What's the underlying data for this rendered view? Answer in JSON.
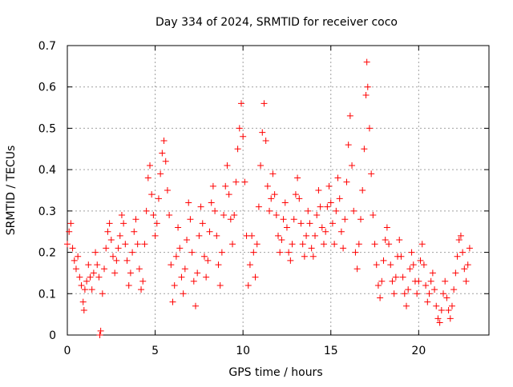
{
  "chart_data": {
    "type": "scatter",
    "title": "Day 334 of 2024, SRMTID for receiver coco",
    "xlabel": "GPS time / hours",
    "ylabel": "SRMTID / TECUs",
    "xlim": [
      0,
      24
    ],
    "ylim": [
      0,
      0.7
    ],
    "xticks": [
      0,
      5,
      10,
      15,
      20
    ],
    "yticks": [
      0,
      0.1,
      0.2,
      0.3,
      0.4,
      0.5,
      0.6,
      0.7
    ],
    "xtick_labels": [
      "0",
      "5",
      "10",
      "15",
      "20"
    ],
    "ytick_labels": [
      "0",
      "0.1",
      "0.2",
      "0.3",
      "0.4",
      "0.5",
      "0.6",
      "0.7"
    ],
    "grid": true,
    "marker": "+",
    "colors": {
      "marker": "#ff0000",
      "grid": "#a0a0a0",
      "axis": "#000000"
    },
    "series": [
      {
        "name": "SRMTID",
        "points": [
          [
            0.0,
            0.22
          ],
          [
            0.1,
            0.25
          ],
          [
            0.2,
            0.27
          ],
          [
            0.3,
            0.21
          ],
          [
            0.4,
            0.18
          ],
          [
            0.5,
            0.16
          ],
          [
            0.6,
            0.19
          ],
          [
            0.7,
            0.14
          ],
          [
            0.8,
            0.12
          ],
          [
            0.9,
            0.08
          ],
          [
            0.95,
            0.06
          ],
          [
            1.0,
            0.11
          ],
          [
            1.1,
            0.13
          ],
          [
            1.2,
            0.17
          ],
          [
            1.3,
            0.14
          ],
          [
            1.4,
            0.11
          ],
          [
            1.5,
            0.15
          ],
          [
            1.6,
            0.2
          ],
          [
            1.7,
            0.17
          ],
          [
            1.8,
            0.14
          ],
          [
            1.85,
            0.0
          ],
          [
            1.9,
            0.01
          ],
          [
            2.0,
            0.1
          ],
          [
            2.1,
            0.16
          ],
          [
            2.2,
            0.21
          ],
          [
            2.3,
            0.25
          ],
          [
            2.4,
            0.27
          ],
          [
            2.5,
            0.23
          ],
          [
            2.6,
            0.19
          ],
          [
            2.7,
            0.15
          ],
          [
            2.8,
            0.18
          ],
          [
            2.9,
            0.21
          ],
          [
            3.0,
            0.24
          ],
          [
            3.1,
            0.29
          ],
          [
            3.2,
            0.27
          ],
          [
            3.3,
            0.22
          ],
          [
            3.4,
            0.18
          ],
          [
            3.5,
            0.12
          ],
          [
            3.6,
            0.15
          ],
          [
            3.7,
            0.2
          ],
          [
            3.8,
            0.25
          ],
          [
            3.9,
            0.28
          ],
          [
            4.0,
            0.22
          ],
          [
            4.1,
            0.16
          ],
          [
            4.2,
            0.11
          ],
          [
            4.3,
            0.13
          ],
          [
            4.4,
            0.22
          ],
          [
            4.5,
            0.3
          ],
          [
            4.6,
            0.38
          ],
          [
            4.7,
            0.41
          ],
          [
            4.8,
            0.34
          ],
          [
            4.9,
            0.29
          ],
          [
            5.0,
            0.24
          ],
          [
            5.1,
            0.27
          ],
          [
            5.2,
            0.33
          ],
          [
            5.3,
            0.39
          ],
          [
            5.4,
            0.44
          ],
          [
            5.5,
            0.47
          ],
          [
            5.6,
            0.42
          ],
          [
            5.7,
            0.35
          ],
          [
            5.8,
            0.29
          ],
          [
            5.9,
            0.17
          ],
          [
            6.0,
            0.08
          ],
          [
            6.1,
            0.12
          ],
          [
            6.2,
            0.19
          ],
          [
            6.3,
            0.26
          ],
          [
            6.4,
            0.21
          ],
          [
            6.5,
            0.14
          ],
          [
            6.6,
            0.1
          ],
          [
            6.7,
            0.16
          ],
          [
            6.8,
            0.23
          ],
          [
            6.9,
            0.32
          ],
          [
            7.0,
            0.28
          ],
          [
            7.1,
            0.2
          ],
          [
            7.2,
            0.13
          ],
          [
            7.3,
            0.07
          ],
          [
            7.4,
            0.15
          ],
          [
            7.5,
            0.24
          ],
          [
            7.6,
            0.31
          ],
          [
            7.7,
            0.27
          ],
          [
            7.8,
            0.19
          ],
          [
            7.9,
            0.14
          ],
          [
            8.0,
            0.18
          ],
          [
            8.1,
            0.25
          ],
          [
            8.2,
            0.32
          ],
          [
            8.3,
            0.36
          ],
          [
            8.4,
            0.3
          ],
          [
            8.5,
            0.24
          ],
          [
            8.6,
            0.17
          ],
          [
            8.7,
            0.12
          ],
          [
            8.8,
            0.2
          ],
          [
            8.9,
            0.29
          ],
          [
            9.0,
            0.36
          ],
          [
            9.1,
            0.41
          ],
          [
            9.2,
            0.34
          ],
          [
            9.3,
            0.28
          ],
          [
            9.4,
            0.22
          ],
          [
            9.5,
            0.29
          ],
          [
            9.6,
            0.37
          ],
          [
            9.7,
            0.45
          ],
          [
            9.8,
            0.5
          ],
          [
            9.9,
            0.56
          ],
          [
            10.0,
            0.48
          ],
          [
            10.1,
            0.37
          ],
          [
            10.2,
            0.24
          ],
          [
            10.3,
            0.12
          ],
          [
            10.4,
            0.17
          ],
          [
            10.5,
            0.24
          ],
          [
            10.6,
            0.2
          ],
          [
            10.7,
            0.14
          ],
          [
            10.8,
            0.22
          ],
          [
            10.9,
            0.31
          ],
          [
            11.0,
            0.41
          ],
          [
            11.1,
            0.49
          ],
          [
            11.2,
            0.56
          ],
          [
            11.3,
            0.47
          ],
          [
            11.4,
            0.36
          ],
          [
            11.5,
            0.3
          ],
          [
            11.6,
            0.33
          ],
          [
            11.7,
            0.39
          ],
          [
            11.8,
            0.34
          ],
          [
            11.9,
            0.29
          ],
          [
            12.0,
            0.24
          ],
          [
            12.1,
            0.2
          ],
          [
            12.2,
            0.23
          ],
          [
            12.3,
            0.28
          ],
          [
            12.4,
            0.32
          ],
          [
            12.5,
            0.26
          ],
          [
            12.6,
            0.2
          ],
          [
            12.7,
            0.18
          ],
          [
            12.8,
            0.22
          ],
          [
            12.9,
            0.28
          ],
          [
            13.0,
            0.34
          ],
          [
            13.1,
            0.38
          ],
          [
            13.2,
            0.33
          ],
          [
            13.3,
            0.27
          ],
          [
            13.4,
            0.22
          ],
          [
            13.5,
            0.19
          ],
          [
            13.6,
            0.24
          ],
          [
            13.7,
            0.3
          ],
          [
            13.8,
            0.27
          ],
          [
            13.9,
            0.21
          ],
          [
            14.0,
            0.19
          ],
          [
            14.1,
            0.24
          ],
          [
            14.2,
            0.29
          ],
          [
            14.3,
            0.35
          ],
          [
            14.4,
            0.31
          ],
          [
            14.5,
            0.26
          ],
          [
            14.6,
            0.22
          ],
          [
            14.7,
            0.25
          ],
          [
            14.8,
            0.31
          ],
          [
            14.9,
            0.36
          ],
          [
            15.0,
            0.32
          ],
          [
            15.1,
            0.27
          ],
          [
            15.2,
            0.22
          ],
          [
            15.3,
            0.3
          ],
          [
            15.4,
            0.38
          ],
          [
            15.5,
            0.33
          ],
          [
            15.6,
            0.25
          ],
          [
            15.7,
            0.21
          ],
          [
            15.8,
            0.28
          ],
          [
            15.9,
            0.37
          ],
          [
            16.0,
            0.46
          ],
          [
            16.1,
            0.53
          ],
          [
            16.2,
            0.41
          ],
          [
            16.3,
            0.3
          ],
          [
            16.4,
            0.2
          ],
          [
            16.5,
            0.16
          ],
          [
            16.6,
            0.22
          ],
          [
            16.7,
            0.28
          ],
          [
            16.8,
            0.35
          ],
          [
            16.9,
            0.45
          ],
          [
            17.0,
            0.58
          ],
          [
            17.05,
            0.66
          ],
          [
            17.1,
            0.6
          ],
          [
            17.2,
            0.5
          ],
          [
            17.3,
            0.39
          ],
          [
            17.4,
            0.29
          ],
          [
            17.5,
            0.22
          ],
          [
            17.6,
            0.17
          ],
          [
            17.7,
            0.12
          ],
          [
            17.8,
            0.09
          ],
          [
            17.9,
            0.13
          ],
          [
            18.0,
            0.18
          ],
          [
            18.1,
            0.23
          ],
          [
            18.2,
            0.26
          ],
          [
            18.3,
            0.22
          ],
          [
            18.4,
            0.17
          ],
          [
            18.5,
            0.13
          ],
          [
            18.6,
            0.1
          ],
          [
            18.7,
            0.14
          ],
          [
            18.8,
            0.19
          ],
          [
            18.9,
            0.23
          ],
          [
            19.0,
            0.19
          ],
          [
            19.1,
            0.14
          ],
          [
            19.2,
            0.1
          ],
          [
            19.3,
            0.07
          ],
          [
            19.4,
            0.11
          ],
          [
            19.5,
            0.16
          ],
          [
            19.6,
            0.2
          ],
          [
            19.7,
            0.17
          ],
          [
            19.8,
            0.13
          ],
          [
            19.9,
            0.1
          ],
          [
            20.0,
            0.13
          ],
          [
            20.1,
            0.18
          ],
          [
            20.2,
            0.22
          ],
          [
            20.3,
            0.17
          ],
          [
            20.4,
            0.12
          ],
          [
            20.5,
            0.08
          ],
          [
            20.6,
            0.1
          ],
          [
            20.7,
            0.13
          ],
          [
            20.8,
            0.15
          ],
          [
            20.9,
            0.11
          ],
          [
            21.0,
            0.07
          ],
          [
            21.1,
            0.04
          ],
          [
            21.2,
            0.03
          ],
          [
            21.3,
            0.06
          ],
          [
            21.4,
            0.1
          ],
          [
            21.5,
            0.13
          ],
          [
            21.6,
            0.09
          ],
          [
            21.7,
            0.06
          ],
          [
            21.8,
            0.04
          ],
          [
            21.9,
            0.07
          ],
          [
            22.0,
            0.11
          ],
          [
            22.1,
            0.15
          ],
          [
            22.2,
            0.19
          ],
          [
            22.3,
            0.23
          ],
          [
            22.4,
            0.24
          ],
          [
            22.5,
            0.2
          ],
          [
            22.6,
            0.16
          ],
          [
            22.7,
            0.13
          ],
          [
            22.8,
            0.17
          ],
          [
            22.9,
            0.21
          ]
        ]
      }
    ]
  }
}
